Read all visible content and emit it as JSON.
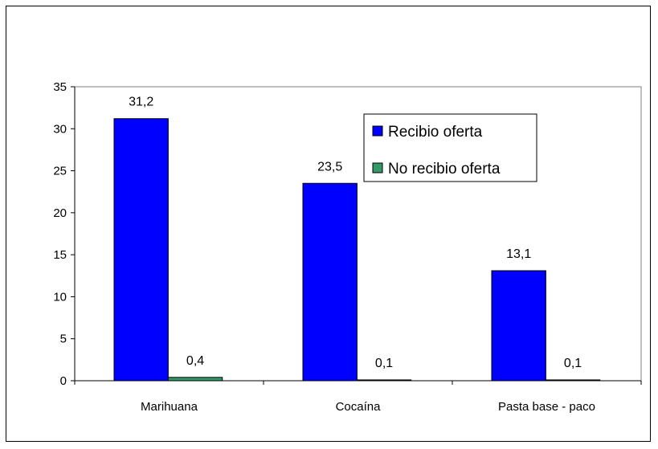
{
  "chart_data": {
    "type": "bar",
    "categories": [
      "Marihuana",
      "Cocaína",
      "Pasta base - paco"
    ],
    "series": [
      {
        "name": "Recibio oferta",
        "values": [
          31.2,
          23.5,
          13.1
        ],
        "labels": [
          "31,2",
          "23,5",
          "13,1"
        ],
        "color": "#0000FF"
      },
      {
        "name": "No recibio oferta",
        "values": [
          0.4,
          0.1,
          0.1
        ],
        "labels": [
          "0,4",
          "0,1",
          "0,1"
        ],
        "color": "#339966"
      }
    ],
    "yticks": [
      "0",
      "5",
      "10",
      "15",
      "20",
      "25",
      "30",
      "35"
    ],
    "ylim": [
      0,
      35
    ],
    "plot_background": "#ffffff",
    "grid": false,
    "legend_position": "top-right"
  }
}
